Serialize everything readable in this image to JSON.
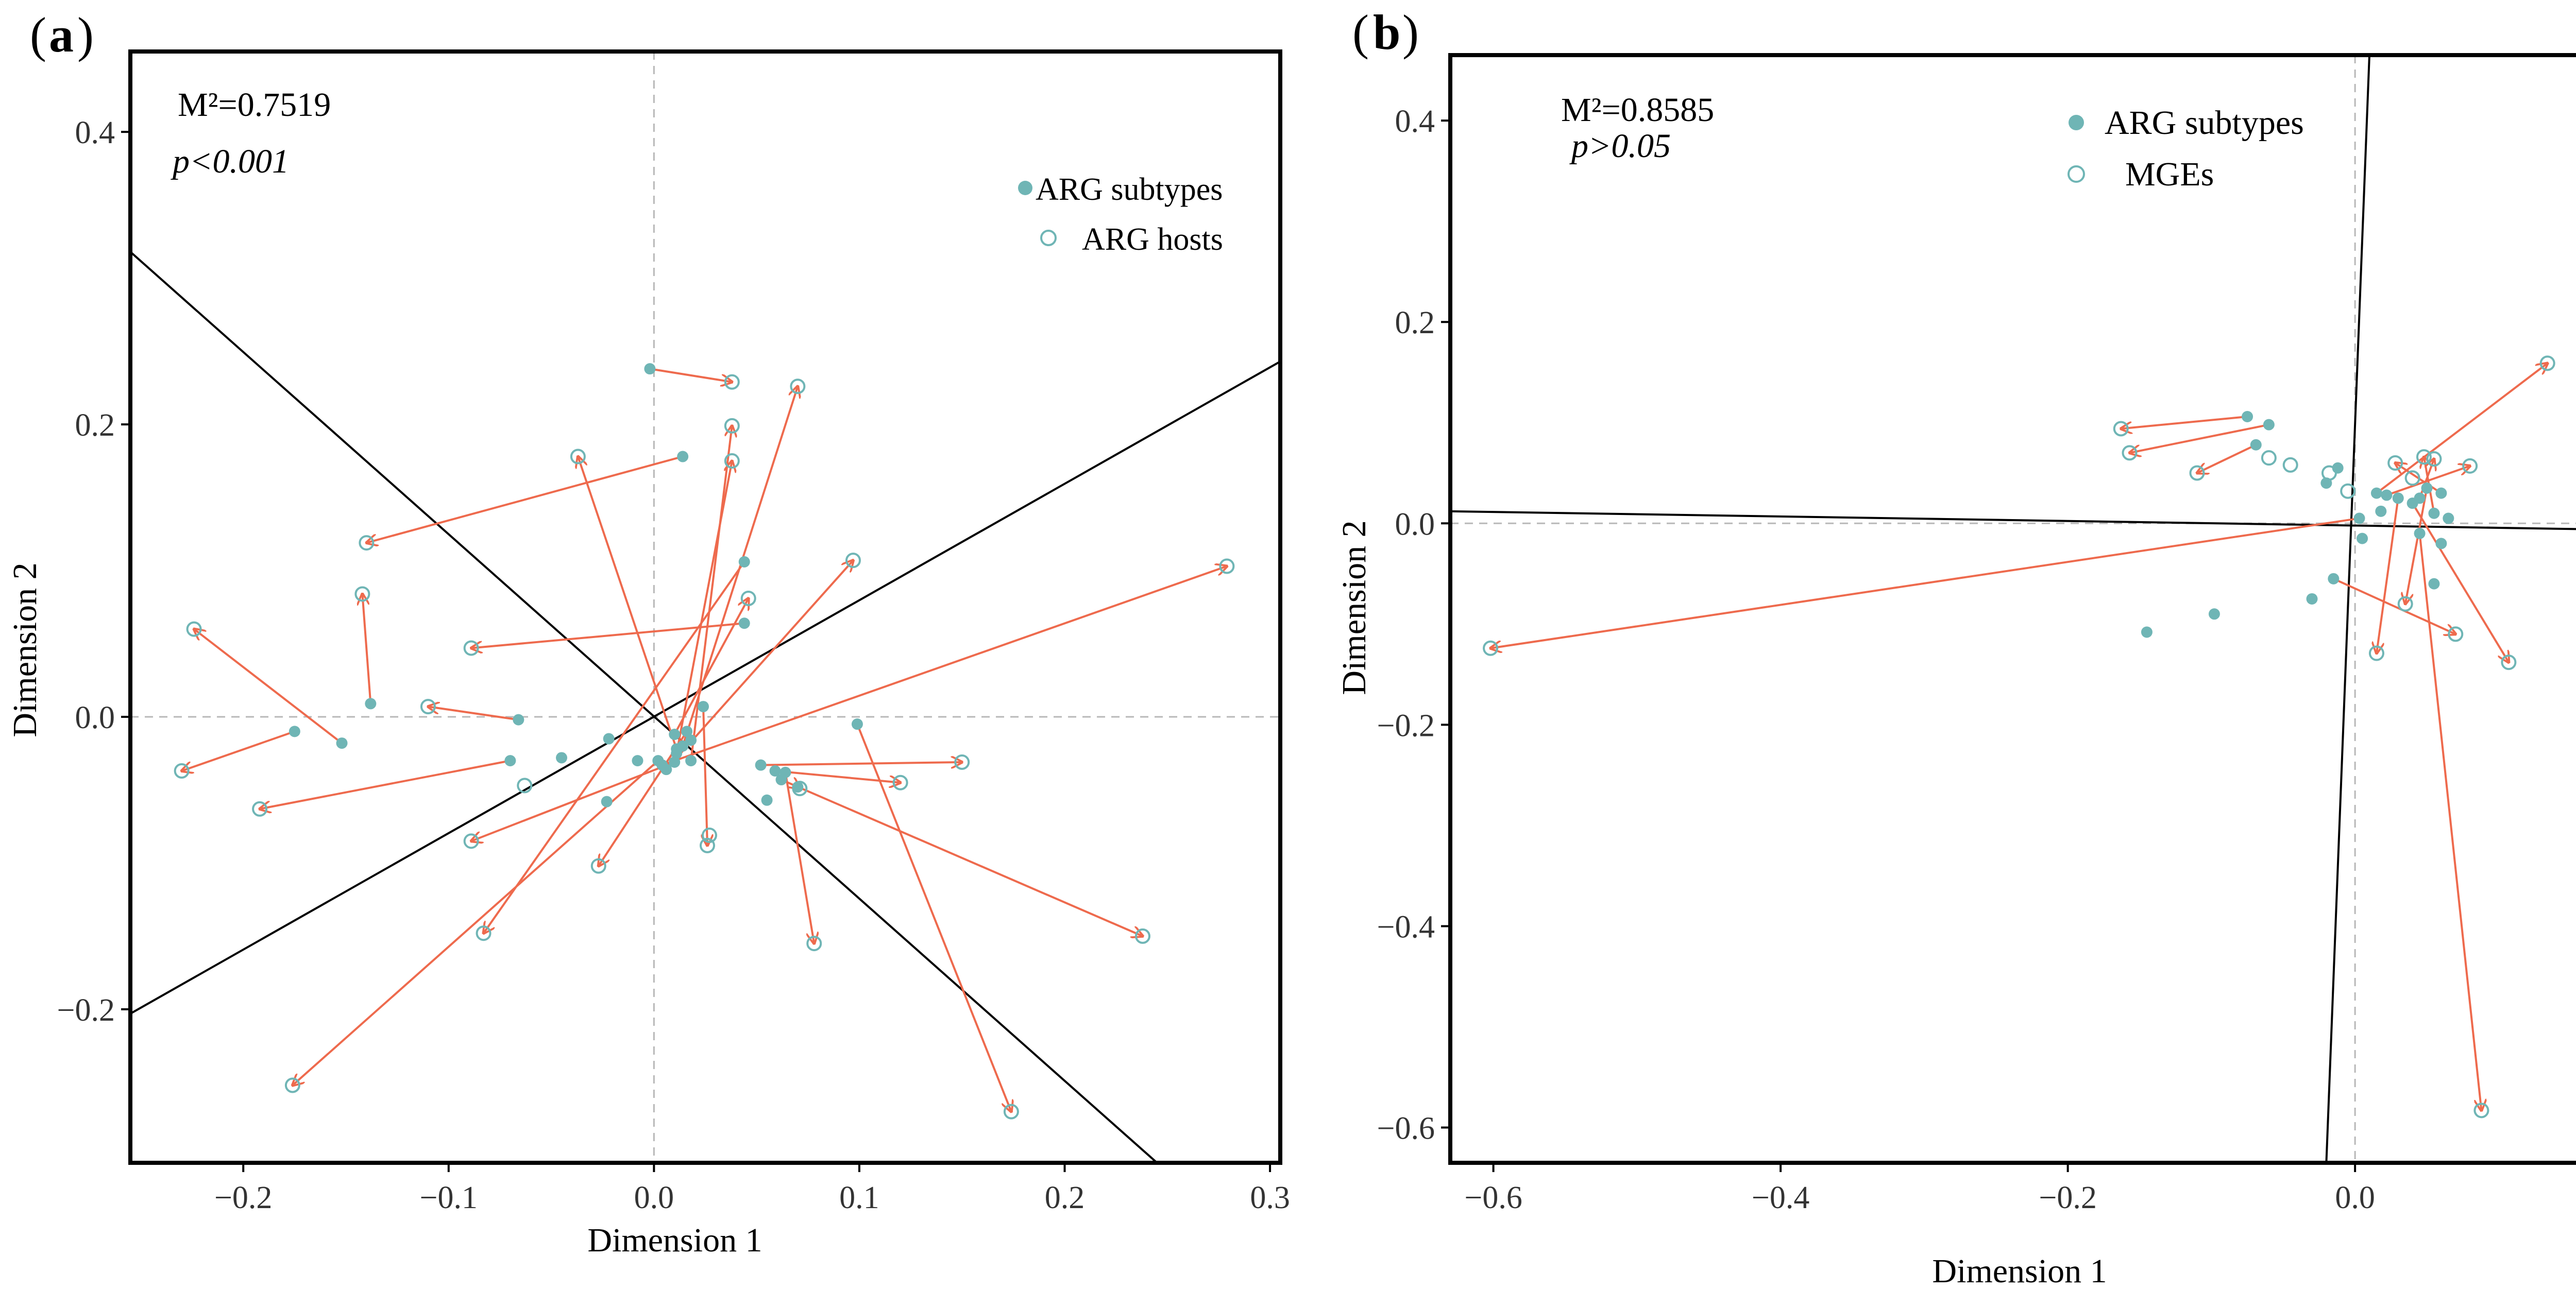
{
  "chart_data": [
    {
      "type": "scatter",
      "panel_label": "(a)",
      "panel_letter": "a",
      "xlabel": "Dimension 1",
      "ylabel": "Dimension 2",
      "xlim": [
        -0.255,
        0.305
      ],
      "ylim": [
        -0.305,
        0.455
      ],
      "xticks": [
        -0.2,
        -0.1,
        0.0,
        0.1,
        0.2,
        0.3
      ],
      "xtick_labels": [
        "−0.2",
        "−0.1",
        "0.0",
        "0.1",
        "0.2",
        "0.3"
      ],
      "yticks": [
        -0.2,
        0.0,
        0.2,
        0.4
      ],
      "ytick_labels": [
        "−0.2",
        "0.0",
        "0.2",
        "0.4"
      ],
      "stat_m2": "M²=0.7519",
      "stat_p": "p<0.001",
      "legend": [
        "ARG subtypes",
        "ARG hosts"
      ],
      "legend_position": "top-right",
      "reference_lines": [
        {
          "x1": -0.255,
          "y1": 0.318,
          "x2": 0.245,
          "y2": -0.305
        },
        {
          "x1": -0.255,
          "y1": -0.203,
          "x2": 0.305,
          "y2": 0.243
        }
      ],
      "pairs": [
        {
          "from": [
            -0.002,
            0.238
          ],
          "to": [
            0.038,
            0.229
          ]
        },
        {
          "from": [
            0.014,
            0.178
          ],
          "to": [
            -0.14,
            0.119
          ]
        },
        {
          "from": [
            0.044,
            0.064
          ],
          "to": [
            -0.089,
            0.047
          ]
        },
        {
          "from": [
            -0.138,
            0.009
          ],
          "to": [
            -0.142,
            0.084
          ]
        },
        {
          "from": [
            -0.152,
            -0.018
          ],
          "to": [
            -0.224,
            0.06
          ]
        },
        {
          "from": [
            -0.175,
            -0.01
          ],
          "to": [
            -0.23,
            -0.037
          ]
        },
        {
          "from": [
            -0.07,
            -0.03
          ],
          "to": [
            -0.192,
            -0.063
          ]
        },
        {
          "from": [
            -0.066,
            -0.002
          ],
          "to": [
            -0.11,
            0.007
          ]
        },
        {
          "from": [
            0.044,
            0.106
          ],
          "to": [
            -0.083,
            -0.148
          ]
        },
        {
          "from": [
            0.014,
            -0.02
          ],
          "to": [
            0.07,
            0.226
          ]
        },
        {
          "from": [
            0.006,
            -0.036
          ],
          "to": [
            0.097,
            0.107
          ]
        },
        {
          "from": [
            0.011,
            -0.022
          ],
          "to": [
            -0.037,
            0.178
          ]
        },
        {
          "from": [
            0.011,
            -0.025
          ],
          "to": [
            0.038,
            0.175
          ]
        },
        {
          "from": [
            0.018,
            -0.03
          ],
          "to": [
            0.038,
            0.199
          ]
        },
        {
          "from": [
            0.002,
            -0.03
          ],
          "to": [
            -0.176,
            -0.252
          ]
        },
        {
          "from": [
            0.01,
            -0.031
          ],
          "to": [
            -0.089,
            -0.085
          ]
        },
        {
          "from": [
            0.004,
            -0.033
          ],
          "to": [
            0.279,
            0.103
          ]
        },
        {
          "from": [
            0.016,
            -0.01
          ],
          "to": [
            -0.027,
            -0.102
          ]
        },
        {
          "from": [
            0.024,
            0.007
          ],
          "to": [
            0.026,
            -0.088
          ]
        },
        {
          "from": [
            0.01,
            -0.012
          ],
          "to": [
            0.046,
            0.081
          ]
        },
        {
          "from": [
            0.052,
            -0.033
          ],
          "to": [
            0.15,
            -0.031
          ]
        },
        {
          "from": [
            0.059,
            -0.037
          ],
          "to": [
            0.12,
            -0.045
          ]
        },
        {
          "from": [
            0.062,
            -0.043
          ],
          "to": [
            0.238,
            -0.15
          ]
        },
        {
          "from": [
            0.064,
            -0.038
          ],
          "to": [
            0.078,
            -0.155
          ]
        },
        {
          "from": [
            0.07,
            -0.048
          ],
          "to": [
            0.071,
            -0.049
          ]
        },
        {
          "from": [
            0.099,
            -0.005
          ],
          "to": [
            0.174,
            -0.27
          ]
        }
      ],
      "extra_subtypes": [
        [
          -0.022,
          -0.015
        ],
        [
          -0.023,
          -0.058
        ],
        [
          -0.045,
          -0.028
        ],
        [
          -0.008,
          -0.03
        ],
        [
          0.018,
          -0.016
        ],
        [
          0.055,
          -0.057
        ]
      ],
      "extra_hosts": [
        [
          0.027,
          -0.081
        ],
        [
          -0.063,
          -0.047
        ]
      ]
    },
    {
      "type": "scatter",
      "panel_label": "(b)",
      "panel_letter": "b",
      "xlabel": "Dimension 1",
      "ylabel": "Dimension 2",
      "xlim": [
        -0.63,
        0.17
      ],
      "ylim": [
        -0.635,
        0.465
      ],
      "xticks": [
        -0.6,
        -0.4,
        -0.2,
        0.0
      ],
      "xtick_labels": [
        "−0.6",
        "−0.4",
        "−0.2",
        "0.0"
      ],
      "yticks": [
        -0.6,
        -0.4,
        -0.2,
        0.0,
        0.2,
        0.4
      ],
      "ytick_labels": [
        "−0.6",
        "−0.4",
        "−0.2",
        "0.0",
        "0.2",
        "0.4"
      ],
      "stat_m2": "M²=0.8585",
      "stat_p": "p>0.05",
      "legend": [
        "ARG subtypes",
        "MGEs"
      ],
      "legend_position": "top-right",
      "reference_lines": [
        {
          "x1": -0.63,
          "y1": 0.012,
          "x2": 0.17,
          "y2": -0.006
        },
        {
          "x1": 0.01,
          "y1": 0.465,
          "x2": -0.02,
          "y2": -0.635
        }
      ],
      "pairs": [
        {
          "from": [
            -0.075,
            0.106
          ],
          "to": [
            -0.163,
            0.094
          ]
        },
        {
          "from": [
            -0.06,
            0.098
          ],
          "to": [
            -0.157,
            0.07
          ]
        },
        {
          "from": [
            -0.069,
            0.078
          ],
          "to": [
            -0.11,
            0.05
          ]
        },
        {
          "from": [
            0.003,
            0.005
          ],
          "to": [
            -0.602,
            -0.124
          ]
        },
        {
          "from": [
            0.015,
            0.03
          ],
          "to": [
            0.134,
            0.159
          ]
        },
        {
          "from": [
            0.022,
            0.028
          ],
          "to": [
            0.08,
            0.057
          ]
        },
        {
          "from": [
            0.03,
            0.025
          ],
          "to": [
            0.015,
            -0.129
          ]
        },
        {
          "from": [
            0.04,
            0.02
          ],
          "to": [
            0.107,
            -0.138
          ]
        },
        {
          "from": [
            0.045,
            -0.01
          ],
          "to": [
            0.088,
            -0.583
          ]
        },
        {
          "from": [
            -0.015,
            -0.055
          ],
          "to": [
            0.07,
            -0.11
          ]
        },
        {
          "from": [
            0.05,
            0.035
          ],
          "to": [
            0.035,
            -0.08
          ]
        },
        {
          "from": [
            0.06,
            0.03
          ],
          "to": [
            0.028,
            0.06
          ]
        },
        {
          "from": [
            0.055,
            0.01
          ],
          "to": [
            0.048,
            0.066
          ]
        },
        {
          "from": [
            0.045,
            0.025
          ],
          "to": [
            0.055,
            0.064
          ]
        }
      ],
      "extra_subtypes": [
        [
          -0.145,
          -0.108
        ],
        [
          -0.098,
          -0.09
        ],
        [
          -0.03,
          -0.075
        ],
        [
          -0.012,
          0.055
        ],
        [
          -0.02,
          0.04
        ],
        [
          0.005,
          -0.015
        ],
        [
          0.018,
          0.012
        ],
        [
          0.06,
          -0.02
        ],
        [
          0.065,
          0.005
        ],
        [
          0.055,
          -0.06
        ]
      ],
      "extra_hosts": [
        [
          -0.06,
          0.065
        ],
        [
          -0.045,
          0.058
        ],
        [
          -0.018,
          0.05
        ],
        [
          -0.005,
          0.032
        ],
        [
          0.04,
          0.045
        ]
      ]
    }
  ]
}
